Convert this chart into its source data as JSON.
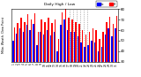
{
  "title": "Milw. Weath. Dew Point",
  "subtitle": "Daily High / Low",
  "legend_high": "Hi",
  "legend_low": "Lo",
  "high_color": "#ff0000",
  "low_color": "#0000ff",
  "background_color": "#ffffff",
  "ylim": [
    30,
    80
  ],
  "yticks": [
    30,
    40,
    50,
    60,
    70,
    80
  ],
  "ytick_labels": [
    "30",
    "40",
    "50",
    "60",
    "70",
    "80"
  ],
  "days": [
    1,
    2,
    3,
    4,
    5,
    6,
    7,
    8,
    9,
    10,
    11,
    12,
    13,
    14,
    15,
    16,
    17,
    18,
    19,
    20,
    21,
    22,
    23,
    24,
    25,
    26,
    27,
    28,
    29,
    30,
    31
  ],
  "highs": [
    63,
    67,
    72,
    68,
    75,
    70,
    76,
    58,
    70,
    68,
    72,
    67,
    70,
    52,
    77,
    80,
    72,
    70,
    68,
    66,
    60,
    56,
    58,
    62,
    60,
    52,
    58,
    68,
    73,
    66,
    74
  ],
  "lows": [
    50,
    57,
    62,
    58,
    65,
    60,
    66,
    46,
    58,
    56,
    60,
    55,
    58,
    40,
    65,
    70,
    60,
    58,
    58,
    54,
    48,
    44,
    46,
    50,
    48,
    40,
    44,
    56,
    62,
    54,
    62
  ],
  "dashed_cols": [
    17,
    18,
    19,
    20,
    21,
    22
  ],
  "bar_width": 0.38
}
